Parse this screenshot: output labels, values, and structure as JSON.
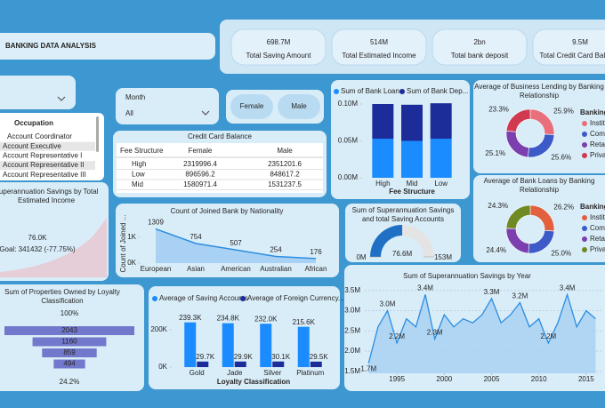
{
  "header": {
    "title": "BANKING DATA ANALYSIS"
  },
  "kpis": [
    {
      "value": "698.7M",
      "label": "Total Saving Amount"
    },
    {
      "value": "514M",
      "label": "Total Estimated Income"
    },
    {
      "value": "2bn",
      "label": "Total bank deposit"
    },
    {
      "value": "9.5M",
      "label": "Total Credit Card Balance"
    }
  ],
  "slicers": {
    "month": {
      "title": "Month",
      "value": "All"
    },
    "gender": [
      "Female",
      "Male"
    ],
    "occupation": {
      "title": "Occupation",
      "items": [
        "Account Coordinator",
        "Account Executive",
        "Account Representative I",
        "Account Representative II",
        "Account Representative III"
      ]
    }
  },
  "table": {
    "title": "Credit Card Balance",
    "columns": [
      "Fee Structure",
      "Female",
      "Male"
    ],
    "rows": [
      [
        "High",
        2319996.4,
        2351201.6
      ],
      [
        "Low",
        896596.2,
        848617.2
      ],
      [
        "Mid",
        1580971.4,
        1531237.5
      ]
    ]
  },
  "kpi_card": {
    "title": [
      "Superannuation Savings by Total",
      "Estimated Income"
    ],
    "value": "76.0K",
    "goal": "Goal: 341432 (-77.75%)"
  },
  "chart_data": [
    {
      "type": "bar",
      "stacked": true,
      "xlabel": "Fee Structure",
      "categories": [
        "High",
        "Mid",
        "Low"
      ],
      "series": [
        {
          "name": "Sum of Bank Loans",
          "color": "#1a8cff",
          "values": [
            53000,
            50000,
            53000
          ]
        },
        {
          "name": "Sum of Bank Dep...",
          "color": "#1c2d9a",
          "values": [
            47000,
            49000,
            48000
          ]
        }
      ],
      "ylim": [
        0,
        100000
      ],
      "yticks": [
        {
          "value": 0,
          "label": "0.00M"
        },
        {
          "value": 50000,
          "label": "0.05M"
        },
        {
          "value": 100000,
          "label": "0.10M"
        }
      ],
      "grid": false
    },
    {
      "type": "pie",
      "title": [
        "Average of Business Lending by Banking",
        "Relationship"
      ],
      "legend_title": "Banking Relationship",
      "categories": [
        "Institutional",
        "Commercial",
        "Retail",
        "Private"
      ],
      "values": [
        25.9,
        25.6,
        25.1,
        23.3
      ],
      "value_labels": [
        "25.9%",
        "25.6%",
        "25.1%",
        "23.3%"
      ],
      "colors": [
        "#e8707c",
        "#3c5bc8",
        "#7c3fae",
        "#d0394e"
      ]
    },
    {
      "type": "pie",
      "title": [
        "Average of Bank Loans by Banking",
        "Relationship"
      ],
      "legend_title": "Banking Relationship",
      "categories": [
        "Institutional",
        "Commercial",
        "Retail",
        "Private"
      ],
      "values": [
        26.2,
        25.0,
        24.4,
        24.3
      ],
      "value_labels": [
        "26.2%",
        "25.0%",
        "24.4%",
        "24.3%"
      ],
      "colors": [
        "#e2603e",
        "#3c5bc8",
        "#7c3fae",
        "#6f8a22"
      ]
    },
    {
      "type": "area",
      "title": "Count of Joined Bank by Nationality",
      "ylabel": "Count of Joined ...",
      "categories": [
        "European",
        "Asian",
        "American",
        "Australian",
        "African"
      ],
      "values": [
        1309,
        754,
        507,
        254,
        176
      ],
      "color": "#2b8de0",
      "ylim": [
        0,
        1500
      ],
      "yticks": [
        {
          "value": 0,
          "label": "0K"
        },
        {
          "value": 1000,
          "label": "1K"
        }
      ]
    },
    {
      "type": "gauge",
      "title": [
        "Sum of Superannuation Savings",
        "and total Saving Accounts"
      ],
      "value": 76600000,
      "value_label": "76.6M",
      "color": "#1f6fc4",
      "ylim": [
        0,
        153000000
      ],
      "yticks": [
        {
          "value": 0,
          "label": "0M"
        },
        {
          "value": 153000000,
          "label": "153M"
        }
      ]
    },
    {
      "type": "funnel",
      "title": [
        "Sum of Properties Owned by Loyalty",
        "Classification"
      ],
      "values": [
        2043,
        1160,
        859,
        494
      ],
      "top_label": "100%",
      "bottom_label": "24.2%",
      "color": "#7278cc"
    },
    {
      "type": "bar",
      "stacked": false,
      "xlabel": "Loyalty Classification",
      "categories": [
        "Gold",
        "Jade",
        "Silver",
        "Platinum"
      ],
      "series": [
        {
          "name": "Average of Saving Accounts",
          "color": "#1a8cff",
          "values": [
            239300,
            234800,
            232000,
            215600
          ],
          "value_labels": [
            "239.3K",
            "234.8K",
            "232.0K",
            "215.6K"
          ]
        },
        {
          "name": "Average of Foreign Currency...",
          "color": "#1c2d9a",
          "values": [
            29700,
            29900,
            30100,
            29500
          ],
          "value_labels": [
            "29.7K",
            "29.9K",
            "30.1K",
            "29.5K"
          ]
        }
      ],
      "ylim": [
        0,
        290000
      ],
      "yticks": [
        {
          "value": 0,
          "label": "0K"
        },
        {
          "value": 200000,
          "label": "200K"
        }
      ],
      "grid": false
    },
    {
      "type": "line",
      "title": "Sum of Superannuation Savings by Year",
      "color": "#2b8de0",
      "x": [
        1992,
        1993,
        1994,
        1995,
        1996,
        1997,
        1998,
        1999,
        2000,
        2001,
        2002,
        2003,
        2004,
        2005,
        2006,
        2007,
        2008,
        2009,
        2010,
        2011,
        2012,
        2013,
        2014,
        2015,
        2016
      ],
      "values": [
        1700000,
        2600000,
        3000000,
        2200000,
        2800000,
        2600000,
        3400000,
        2300000,
        2900000,
        2600000,
        2800000,
        2700000,
        2900000,
        3300000,
        2700000,
        2900000,
        3200000,
        2600000,
        2800000,
        2200000,
        2700000,
        3400000,
        2600000,
        3000000,
        2800000
      ],
      "value_labels": [
        "1.7M",
        null,
        "3.0M",
        "2.2M",
        null,
        null,
        "3.4M",
        "2.3M",
        null,
        null,
        null,
        null,
        null,
        "3.3M",
        null,
        null,
        "3.2M",
        null,
        null,
        "2.2M",
        null,
        "3.4M",
        null,
        null,
        null
      ],
      "xlim": [
        1991.6,
        2016.8
      ],
      "xticks": [
        1995,
        2000,
        2005,
        2010,
        2015
      ],
      "ylim": [
        1450000,
        3650000
      ],
      "yticks": [
        {
          "value": 1500000,
          "label": "1.5M"
        },
        {
          "value": 2000000,
          "label": "2.0M"
        },
        {
          "value": 2500000,
          "label": "2.5M"
        },
        {
          "value": 3000000,
          "label": "3.0M"
        },
        {
          "value": 3500000,
          "label": "3.5M"
        }
      ],
      "grid": true
    }
  ]
}
